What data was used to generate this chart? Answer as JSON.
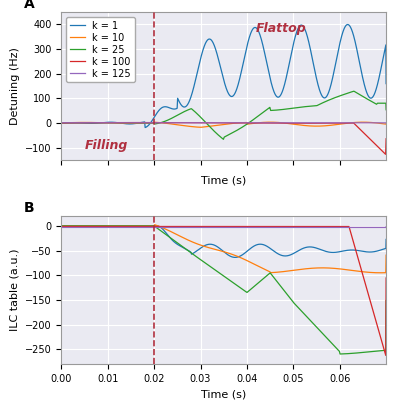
{
  "title_A": "A",
  "title_B": "B",
  "xlabel": "Time (s)",
  "ylabel_A": "Detuning (Hz)",
  "ylabel_B": "ILC table (a.u.)",
  "legend_labels": [
    "k = 1",
    "k = 10",
    "k = 25",
    "k = 100",
    "k = 125"
  ],
  "colors": [
    "#1f77b4",
    "#ff7f0e",
    "#2ca02c",
    "#d62728",
    "#9467bd"
  ],
  "dashed_line_x": 0.02,
  "dashed_line_color": "#b03040",
  "filling_label": "Filling",
  "flattop_label": "Flattop",
  "xlim": [
    0.0,
    0.07
  ],
  "ylim_A": [
    -150,
    450
  ],
  "ylim_B": [
    -280,
    20
  ],
  "yticks_A": [
    -100,
    0,
    100,
    200,
    300,
    400
  ],
  "yticks_B": [
    -250,
    -200,
    -150,
    -100,
    -50,
    0
  ],
  "xticks": [
    0.0,
    0.01,
    0.02,
    0.03,
    0.04,
    0.05,
    0.06
  ],
  "xtick_labels": [
    "0.00",
    "0.01",
    "0.02",
    "0.03",
    "0.04",
    "0.05",
    "0.06"
  ],
  "label_fontsize": 8,
  "tick_fontsize": 7,
  "legend_fontsize": 7,
  "annotation_fontsize": 9,
  "background_color": "#eaeaf2"
}
